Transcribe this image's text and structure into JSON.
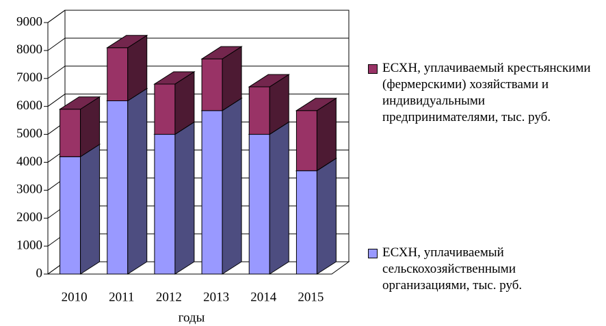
{
  "chart_data": {
    "type": "bar3d_stacked",
    "categories": [
      "2010",
      "2011",
      "2012",
      "2013",
      "2014",
      "2015"
    ],
    "x_label": "годы",
    "series": [
      {
        "name": "ЕСХН, уплачиваемый сельскохозяйственными организациями, тыс. руб.",
        "color": "#9999ff",
        "values": [
          4200,
          6200,
          5000,
          5850,
          5000,
          3700
        ]
      },
      {
        "name": "ЕСХН, уплачиваемый крестьянскими (фермерскими) хозяйствами и индивидуальными предпринимателями, тыс. руб.",
        "color": "#993366",
        "values": [
          1700,
          1900,
          1800,
          1850,
          1700,
          2150
        ]
      }
    ],
    "ylim": [
      0,
      9000
    ],
    "yticks": [
      0,
      1000,
      2000,
      3000,
      4000,
      5000,
      6000,
      7000,
      8000,
      9000
    ],
    "grid": true,
    "legend": "right"
  }
}
